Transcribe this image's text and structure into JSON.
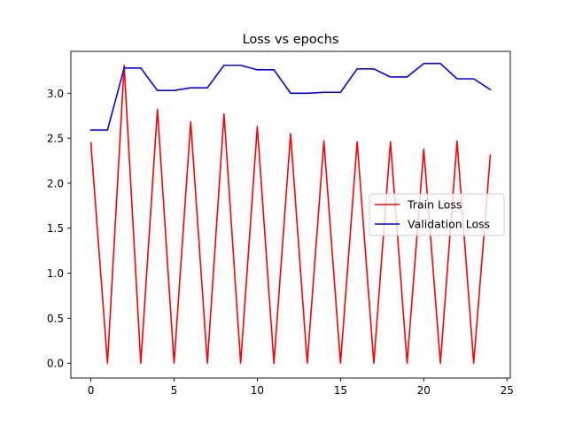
{
  "chart_data": {
    "type": "line",
    "title": "Loss vs epochs",
    "xlabel": "",
    "ylabel": "",
    "xlim": [
      -1.2,
      25.2
    ],
    "ylim": [
      -0.165,
      3.465
    ],
    "xticks": [
      0,
      5,
      10,
      15,
      20,
      25
    ],
    "yticks": [
      0.0,
      0.5,
      1.0,
      1.5,
      2.0,
      2.5,
      3.0
    ],
    "xtick_labels": [
      "0",
      "5",
      "10",
      "15",
      "20",
      "25"
    ],
    "ytick_labels": [
      "0.0",
      "0.5",
      "1.0",
      "1.5",
      "2.0",
      "2.5",
      "3.0"
    ],
    "grid": false,
    "legend_position": "center-right",
    "x": [
      0,
      1,
      2,
      3,
      4,
      5,
      6,
      7,
      8,
      9,
      10,
      11,
      12,
      13,
      14,
      15,
      16,
      17,
      18,
      19,
      20,
      21,
      22,
      23,
      24
    ],
    "series": [
      {
        "name": "Train Loss",
        "color": "#ff0000",
        "values": [
          2.45,
          0.0,
          3.31,
          0.0,
          2.82,
          0.0,
          2.68,
          0.0,
          2.77,
          0.0,
          2.63,
          0.0,
          2.55,
          0.0,
          2.47,
          0.0,
          2.46,
          0.0,
          2.46,
          0.0,
          2.38,
          0.0,
          2.47,
          0.0,
          2.31
        ]
      },
      {
        "name": "Validation Loss",
        "color": "#0000ff",
        "values": [
          2.59,
          2.59,
          3.28,
          3.28,
          3.03,
          3.03,
          3.06,
          3.06,
          3.31,
          3.31,
          3.26,
          3.26,
          3.0,
          3.0,
          3.01,
          3.01,
          3.27,
          3.27,
          3.18,
          3.18,
          3.33,
          3.33,
          3.16,
          3.16,
          3.04
        ]
      }
    ]
  }
}
